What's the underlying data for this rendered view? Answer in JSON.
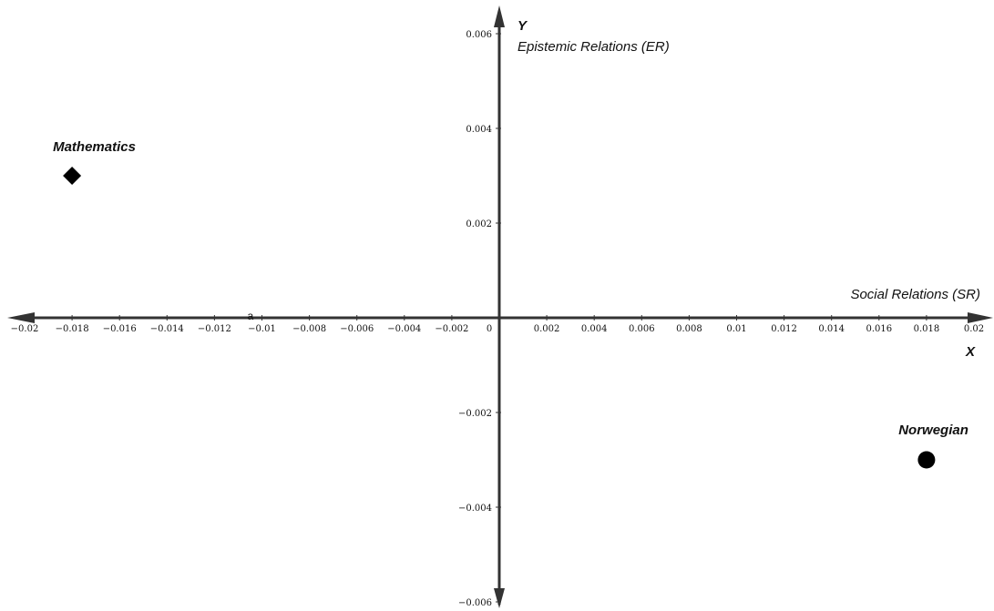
{
  "chart_data": {
    "type": "scatter",
    "x_axis": {
      "letter": "X",
      "title": "Social Relations (SR)",
      "range": [
        -0.02,
        0.02
      ],
      "ticks": [
        -0.02,
        -0.018,
        -0.016,
        -0.014,
        -0.012,
        -0.01,
        -0.008,
        -0.006,
        -0.004,
        -0.002,
        0,
        0.002,
        0.004,
        0.006,
        0.008,
        0.01,
        0.012,
        0.014,
        0.016,
        0.018,
        0.02
      ],
      "tick_labels": [
        "−0.02",
        "−0.018",
        "−0.016",
        "−0.014",
        "−0.012",
        "−0.01",
        "−0.008",
        "−0.006",
        "−0.004",
        "−0.002",
        "0",
        "0.002",
        "0.004",
        "0.006",
        "0.008",
        "0.01",
        "0.012",
        "0.014",
        "0.016",
        "0.018",
        "0.02"
      ]
    },
    "y_axis": {
      "letter": "Y",
      "title": "Epistemic Relations (ER)",
      "range": [
        -0.006,
        0.006
      ],
      "ticks": [
        -0.006,
        -0.004,
        -0.002,
        0.002,
        0.004,
        0.006
      ],
      "tick_labels": [
        "−0.006",
        "−0.004",
        "−0.002",
        "0.002",
        "0.004",
        "0.006"
      ]
    },
    "annotation": {
      "text": "a",
      "x": -0.0105,
      "y": 0
    },
    "points": [
      {
        "label": "Mathematics",
        "x": -0.018,
        "y": 0.003,
        "marker": "diamond",
        "color": "#000000"
      },
      {
        "label": "Norwegian",
        "x": 0.018,
        "y": -0.003,
        "marker": "circle",
        "color": "#000000"
      }
    ],
    "grid": false,
    "legend": "none"
  }
}
